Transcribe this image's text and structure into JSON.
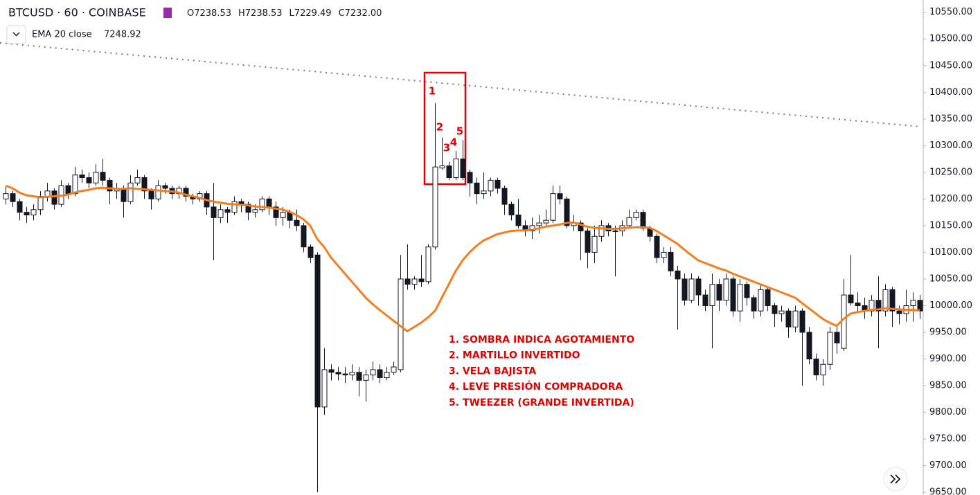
{
  "chart_data": {
    "type": "candlestick",
    "title": "BTCUSD · 60 · COINBASE",
    "ohlc_legend": [
      {
        "label": "O",
        "value": "7238.53"
      },
      {
        "label": "H",
        "value": "7238.53"
      },
      {
        "label": "L",
        "value": "7229.49"
      },
      {
        "label": "C",
        "value": "7232.00"
      }
    ],
    "indicator": {
      "name": "EMA 20 close",
      "value": "7248.92"
    },
    "up_color": "#ffffff",
    "down_color": "#131722",
    "annotation_color": "#e00000",
    "ylim": [
      9645,
      10573
    ],
    "yticks": [
      {
        "value": 9650,
        "label": "9650.00"
      },
      {
        "value": 9700,
        "label": "9700.00"
      },
      {
        "value": 9750,
        "label": "9750.00"
      },
      {
        "value": 9800,
        "label": "9800.00"
      },
      {
        "value": 9850,
        "label": "9850.00"
      },
      {
        "value": 9900,
        "label": "9900.00"
      },
      {
        "value": 9950,
        "label": "9950.00"
      },
      {
        "value": 10000,
        "label": "10000.00"
      },
      {
        "value": 10050,
        "label": "10050.00"
      },
      {
        "value": 10100,
        "label": "10100.00"
      },
      {
        "value": 10150,
        "label": "10150.00"
      },
      {
        "value": 10200,
        "label": "10200.00"
      },
      {
        "value": 10250,
        "label": "10250.00"
      },
      {
        "value": 10300,
        "label": "10300.00"
      },
      {
        "value": 10350,
        "label": "10350.00"
      },
      {
        "value": 10400,
        "label": "10400.00"
      },
      {
        "value": 10450,
        "label": "10450.00"
      },
      {
        "value": 10500,
        "label": "10500.00"
      },
      {
        "value": 10550,
        "label": "10550.00"
      }
    ],
    "ohlc": [
      [
        10200,
        10225,
        10190,
        10210
      ],
      [
        10210,
        10215,
        10185,
        10195
      ],
      [
        10195,
        10200,
        10160,
        10175
      ],
      [
        10175,
        10185,
        10155,
        10170
      ],
      [
        10170,
        10190,
        10160,
        10180
      ],
      [
        10180,
        10215,
        10170,
        10205
      ],
      [
        10205,
        10230,
        10195,
        10215
      ],
      [
        10215,
        10220,
        10180,
        10190
      ],
      [
        10190,
        10235,
        10185,
        10225
      ],
      [
        10225,
        10230,
        10200,
        10210
      ],
      [
        10210,
        10260,
        10205,
        10245
      ],
      [
        10245,
        10255,
        10230,
        10240
      ],
      [
        10240,
        10250,
        10220,
        10230
      ],
      [
        10230,
        10265,
        10225,
        10250
      ],
      [
        10250,
        10275,
        10225,
        10235
      ],
      [
        10235,
        10240,
        10190,
        10215
      ],
      [
        10215,
        10230,
        10200,
        10220
      ],
      [
        10220,
        10225,
        10165,
        10195
      ],
      [
        10195,
        10245,
        10190,
        10230
      ],
      [
        10230,
        10255,
        10225,
        10240
      ],
      [
        10240,
        10245,
        10200,
        10215
      ],
      [
        10215,
        10220,
        10180,
        10200
      ],
      [
        10200,
        10235,
        10195,
        10225
      ],
      [
        10225,
        10230,
        10210,
        10220
      ],
      [
        10220,
        10225,
        10200,
        10210
      ],
      [
        10210,
        10225,
        10200,
        10220
      ],
      [
        10220,
        10225,
        10195,
        10205
      ],
      [
        10205,
        10210,
        10190,
        10200
      ],
      [
        10200,
        10215,
        10195,
        10210
      ],
      [
        10210,
        10215,
        10170,
        10185
      ],
      [
        10185,
        10230,
        10085,
        10165
      ],
      [
        10165,
        10190,
        10155,
        10180
      ],
      [
        10180,
        10185,
        10155,
        10175
      ],
      [
        10175,
        10205,
        10170,
        10195
      ],
      [
        10195,
        10200,
        10175,
        10190
      ],
      [
        10190,
        10195,
        10160,
        10175
      ],
      [
        10175,
        10190,
        10165,
        10180
      ],
      [
        10180,
        10205,
        10175,
        10200
      ],
      [
        10200,
        10205,
        10170,
        10185
      ],
      [
        10185,
        10195,
        10150,
        10165
      ],
      [
        10165,
        10185,
        10150,
        10175
      ],
      [
        10175,
        10180,
        10145,
        10160
      ],
      [
        10160,
        10180,
        10140,
        10150
      ],
      [
        10150,
        10155,
        10100,
        10110
      ],
      [
        10110,
        10115,
        10080,
        10090
      ],
      [
        10095,
        10100,
        9650,
        9810
      ],
      [
        9810,
        9920,
        9795,
        9880
      ],
      [
        9880,
        9890,
        9860,
        9875
      ],
      [
        9875,
        9885,
        9860,
        9872
      ],
      [
        9872,
        9885,
        9855,
        9870
      ],
      [
        9870,
        9890,
        9860,
        9875
      ],
      [
        9875,
        9885,
        9830,
        9860
      ],
      [
        9860,
        9880,
        9820,
        9870
      ],
      [
        9870,
        9895,
        9860,
        9880
      ],
      [
        9880,
        9890,
        9855,
        9865
      ],
      [
        9865,
        9885,
        9860,
        9875
      ],
      [
        9875,
        9895,
        9870,
        9885
      ],
      [
        9880,
        10095,
        9875,
        10050
      ],
      [
        10050,
        10115,
        10030,
        10040
      ],
      [
        10040,
        10055,
        10030,
        10050
      ],
      [
        10050,
        10095,
        10035,
        10045
      ],
      [
        10045,
        10115,
        10040,
        10110
      ],
      [
        10110,
        10380,
        10105,
        10260
      ],
      [
        10258,
        10315,
        10255,
        10262
      ],
      [
        10262,
        10270,
        10235,
        10240
      ],
      [
        10240,
        10290,
        10235,
        10275
      ],
      [
        10275,
        10310,
        10235,
        10240
      ],
      [
        10250,
        10255,
        10205,
        10230
      ],
      [
        10230,
        10240,
        10190,
        10210
      ],
      [
        10210,
        10250,
        10200,
        10215
      ],
      [
        10215,
        10240,
        10205,
        10235
      ],
      [
        10235,
        10240,
        10210,
        10220
      ],
      [
        10220,
        10225,
        10170,
        10190
      ],
      [
        10190,
        10195,
        10160,
        10170
      ],
      [
        10170,
        10200,
        10145,
        10150
      ],
      [
        10150,
        10160,
        10130,
        10140
      ],
      [
        10140,
        10165,
        10125,
        10150
      ],
      [
        10150,
        10170,
        10135,
        10155
      ],
      [
        10155,
        10180,
        10150,
        10160
      ],
      [
        10160,
        10225,
        10155,
        10210
      ],
      [
        10210,
        10225,
        10190,
        10200
      ],
      [
        10200,
        10205,
        10145,
        10150
      ],
      [
        10150,
        10170,
        10140,
        10155
      ],
      [
        10155,
        10160,
        10085,
        10140
      ],
      [
        10140,
        10145,
        10070,
        10100
      ],
      [
        10100,
        10150,
        10080,
        10130
      ],
      [
        10130,
        10160,
        10120,
        10150
      ],
      [
        10150,
        10155,
        10130,
        10140
      ],
      [
        10140,
        10150,
        10055,
        10140
      ],
      [
        10140,
        10160,
        10130,
        10150
      ],
      [
        10150,
        10180,
        10145,
        10165
      ],
      [
        10165,
        10180,
        10160,
        10175
      ],
      [
        10175,
        10180,
        10140,
        10145
      ],
      [
        10145,
        10150,
        10120,
        10130
      ],
      [
        10130,
        10135,
        10080,
        10090
      ],
      [
        10090,
        10110,
        10080,
        10100
      ],
      [
        10100,
        10110,
        10055,
        10065
      ],
      [
        10065,
        10075,
        9955,
        10050
      ],
      [
        10050,
        10060,
        10000,
        10010
      ],
      [
        10010,
        10060,
        10005,
        10050
      ],
      [
        10050,
        10055,
        10000,
        10020
      ],
      [
        10020,
        10030,
        9990,
        10000
      ],
      [
        10000,
        10060,
        9920,
        10040
      ],
      [
        10040,
        10050,
        9990,
        10010
      ],
      [
        10010,
        10060,
        10000,
        10050
      ],
      [
        10050,
        10055,
        9980,
        9990
      ],
      [
        9990,
        10050,
        9970,
        10040
      ],
      [
        10040,
        10045,
        10000,
        10015
      ],
      [
        10015,
        10020,
        9975,
        9990
      ],
      [
        9990,
        10040,
        9980,
        10030
      ],
      [
        10030,
        10035,
        9990,
        10000
      ],
      [
        10000,
        10005,
        9960,
        9985
      ],
      [
        9985,
        10000,
        9970,
        9990
      ],
      [
        9990,
        9995,
        9940,
        9960
      ],
      [
        9960,
        10000,
        9950,
        9990
      ],
      [
        9990,
        9995,
        9850,
        9950
      ],
      [
        9950,
        9960,
        9890,
        9900
      ],
      [
        9900,
        9910,
        9860,
        9870
      ],
      [
        9870,
        9900,
        9850,
        9890
      ],
      [
        9890,
        9960,
        9880,
        9950
      ],
      [
        9950,
        9960,
        9910,
        9930
      ],
      [
        9920,
        10050,
        9915,
        10020
      ],
      [
        10020,
        10095,
        10000,
        10005
      ],
      [
        10005,
        10025,
        9990,
        10000
      ],
      [
        10000,
        10015,
        9975,
        9990
      ],
      [
        9990,
        10020,
        9980,
        10010
      ],
      [
        10010,
        10055,
        9920,
        9990
      ],
      [
        9990,
        10040,
        9980,
        10030
      ],
      [
        10030,
        10035,
        9960,
        9990
      ],
      [
        9990,
        10000,
        9965,
        9985
      ],
      [
        9985,
        10030,
        9970,
        10000
      ],
      [
        10000,
        10025,
        9970,
        10010
      ],
      [
        10010,
        10020,
        9975,
        9990
      ]
    ],
    "ema": {
      "color": "#f57c1f",
      "values": [
        10225,
        10220,
        10212,
        10207,
        10205,
        10203,
        10204,
        10205,
        10206,
        10208,
        10212,
        10215,
        10217,
        10220,
        10221,
        10220,
        10219,
        10219,
        10220,
        10219,
        10218,
        10217,
        10216,
        10215,
        10214,
        10212,
        10208,
        10205,
        10202,
        10198,
        10195,
        10193,
        10191,
        10190,
        10189,
        10188,
        10186,
        10185,
        10184,
        10182,
        10180,
        10176,
        10170,
        10162,
        10150,
        10125,
        10110,
        10090,
        10075,
        10060,
        10045,
        10030,
        10015,
        10003,
        9992,
        9982,
        9972,
        9962,
        9952,
        9960,
        9968,
        9978,
        9990,
        10015,
        10040,
        10065,
        10085,
        10100,
        10112,
        10122,
        10128,
        10134,
        10137,
        10140,
        10141,
        10141,
        10142,
        10145,
        10148,
        10150,
        10152,
        10155,
        10156,
        10152,
        10148,
        10146,
        10145,
        10144,
        10144,
        10145,
        10146,
        10147,
        10147,
        10146,
        10140,
        10132,
        10124,
        10116,
        10105,
        10095,
        10085,
        10080,
        10075,
        10070,
        10066,
        10060,
        10055,
        10050,
        10045,
        10040,
        10035,
        10030,
        10025,
        10020,
        10015,
        10005,
        9995,
        9985,
        9975,
        9968,
        9962,
        9975,
        9985,
        9988,
        9990,
        9992,
        9993,
        9995,
        9994,
        9993,
        9992,
        9992,
        9991
      ]
    },
    "candle_labels": [
      "1",
      "2",
      "3",
      "4",
      "5"
    ],
    "notes": [
      "1. SOMBRA INDICA AGOTAMIENTO",
      "2. MARTILLO INVERTIDO",
      "3. VELA BAJISTA",
      "4. LEVE PRESIÓN COMPRADORA",
      "5. TWEEZER (GRANDE INVERTIDA)"
    ]
  }
}
